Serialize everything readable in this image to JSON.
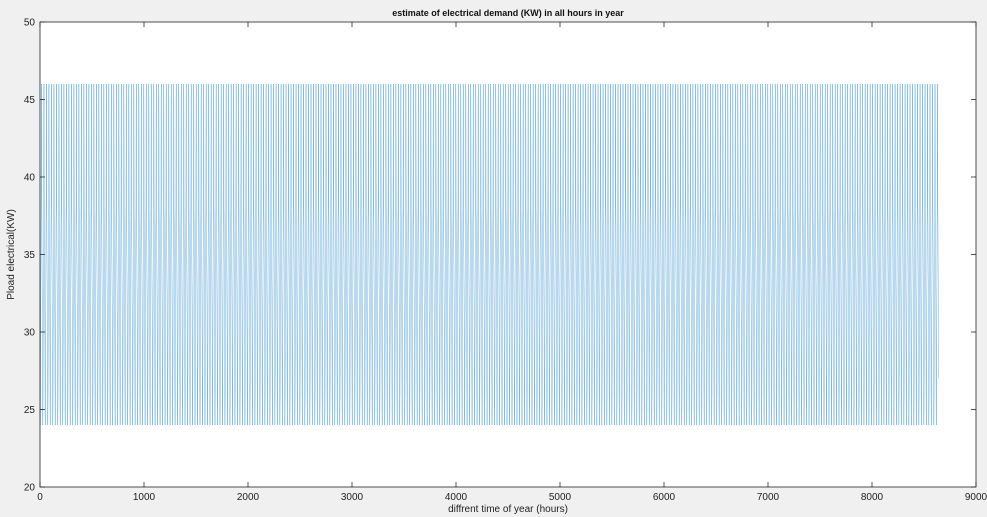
{
  "chart_data": {
    "type": "line",
    "title": "estimate of electrical demand (KW) in all hours in year",
    "xlabel": "diffrent time of year (hours)",
    "ylabel": "Pload electrical(KW)",
    "xlim": [
      0,
      9000
    ],
    "ylim": [
      20,
      50
    ],
    "xticks": [
      0,
      1000,
      2000,
      3000,
      4000,
      5000,
      6000,
      7000,
      8000,
      9000
    ],
    "yticks": [
      20,
      25,
      30,
      35,
      40,
      45,
      50
    ],
    "xtick_labels": [
      "0",
      "1000",
      "2000",
      "3000",
      "4000",
      "5000",
      "6000",
      "7000",
      "8000",
      "9000"
    ],
    "ytick_labels": [
      "20",
      "25",
      "30",
      "35",
      "40",
      "45",
      "50"
    ],
    "grid": false,
    "series": [
      {
        "color": "#0072bd",
        "x_range": [
          1,
          8640
        ],
        "period_hours": 24,
        "daily_profile": [
          25,
          24,
          24,
          25,
          26,
          28,
          30,
          33,
          35,
          37,
          38,
          42,
          45,
          46,
          45,
          42,
          38,
          37,
          35,
          34,
          33,
          32,
          30,
          27
        ],
        "min": 24,
        "max": 46
      }
    ]
  }
}
